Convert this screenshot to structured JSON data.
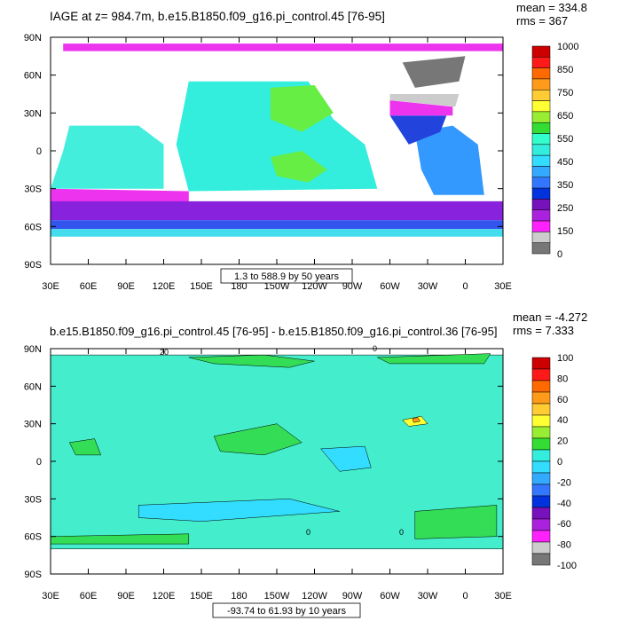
{
  "chart_data": [
    {
      "type": "heatmap",
      "title": "IAGE at z= 984.7m, b.e15.B1850.f09_g16.pi_control.45 [76-95]",
      "stats": {
        "mean": "mean = 334.8",
        "rms": "rms = 367"
      },
      "xlim": [
        30,
        390
      ],
      "ylim": [
        -90,
        90
      ],
      "x_ticks": [
        "30E",
        "60E",
        "90E",
        "120E",
        "150E",
        "180",
        "150W",
        "120W",
        "90W",
        "60W",
        "30W",
        "0",
        "30E"
      ],
      "y_ticks": [
        "90N",
        "60N",
        "30N",
        "0",
        "30S",
        "60S",
        "90S"
      ],
      "range_label": "1.3 to 588.9 by 50 years",
      "colorbar": {
        "labels": [
          "1000",
          "850",
          "750",
          "650",
          "550",
          "450",
          "350",
          "250",
          "150",
          "0"
        ],
        "colors": [
          "#cc0000",
          "#ff1a1a",
          "#ff6a00",
          "#ff9a1a",
          "#ffcc33",
          "#ffff33",
          "#99ee33",
          "#33dd33",
          "#33ffcc",
          "#33eedd",
          "#33ddff",
          "#33aaff",
          "#3377ff",
          "#0033dd",
          "#7711bb",
          "#aa22dd",
          "#ff22ff",
          "#cccccc",
          "#777777"
        ]
      },
      "regions": [
        {
          "name": "arctic-band",
          "color": "#ee33ee",
          "pts": [
            [
              40,
              85
            ],
            [
              390,
              85
            ],
            [
              390,
              79
            ],
            [
              40,
              79
            ]
          ]
        },
        {
          "name": "southern-magenta",
          "color": "#ee33ee",
          "pts": [
            [
              30,
              -30
            ],
            [
              140,
              -32
            ],
            [
              140,
              -45
            ],
            [
              30,
              -50
            ]
          ]
        },
        {
          "name": "southern-purple",
          "color": "#8822dd",
          "pts": [
            [
              30,
              -40
            ],
            [
              390,
              -40
            ],
            [
              390,
              -55
            ],
            [
              30,
              -55
            ]
          ]
        },
        {
          "name": "south-blue",
          "color": "#3355ee",
          "pts": [
            [
              30,
              -55
            ],
            [
              390,
              -55
            ],
            [
              390,
              -62
            ],
            [
              30,
              -62
            ]
          ]
        },
        {
          "name": "south-cyan",
          "color": "#44ddee",
          "pts": [
            [
              30,
              -62
            ],
            [
              390,
              -62
            ],
            [
              390,
              -68
            ],
            [
              30,
              -68
            ]
          ]
        },
        {
          "name": "indian-ocean",
          "color": "#44eedd",
          "pts": [
            [
              45,
              20
            ],
            [
              100,
              20
            ],
            [
              120,
              5
            ],
            [
              120,
              -30
            ],
            [
              30,
              -30
            ],
            [
              40,
              0
            ]
          ]
        },
        {
          "name": "pacific",
          "color": "#33eedd",
          "pts": [
            [
              140,
              55
            ],
            [
              235,
              55
            ],
            [
              255,
              25
            ],
            [
              280,
              5
            ],
            [
              290,
              -30
            ],
            [
              140,
              -32
            ],
            [
              130,
              5
            ]
          ]
        },
        {
          "name": "n-pacific-green",
          "color": "#66ee44",
          "pts": [
            [
              205,
              50
            ],
            [
              240,
              52
            ],
            [
              255,
              30
            ],
            [
              230,
              15
            ],
            [
              205,
              25
            ]
          ]
        },
        {
          "name": "s-pacific-green",
          "color": "#66ee44",
          "pts": [
            [
              205,
              -5
            ],
            [
              230,
              0
            ],
            [
              250,
              -15
            ],
            [
              235,
              -25
            ],
            [
              210,
              -20
            ]
          ]
        },
        {
          "name": "atlantic-blue",
          "color": "#3399ff",
          "pts": [
            [
              320,
              15
            ],
            [
              350,
              20
            ],
            [
              370,
              5
            ],
            [
              375,
              -35
            ],
            [
              335,
              -35
            ],
            [
              325,
              -15
            ]
          ]
        },
        {
          "name": "atlantic-deep",
          "color": "#2244dd",
          "pts": [
            [
              300,
              28
            ],
            [
              345,
              28
            ],
            [
              340,
              15
            ],
            [
              315,
              5
            ]
          ]
        },
        {
          "name": "n-atlantic-magenta",
          "color": "#ee33ee",
          "pts": [
            [
              300,
              40
            ],
            [
              350,
              35
            ],
            [
              350,
              28
            ],
            [
              300,
              28
            ]
          ]
        },
        {
          "name": "n-atlantic-grey",
          "color": "#cccccc",
          "pts": [
            [
              300,
              45
            ],
            [
              355,
              45
            ],
            [
              352,
              35
            ],
            [
              300,
              40
            ]
          ]
        },
        {
          "name": "nordic-dark",
          "color": "#777777",
          "pts": [
            [
              310,
              70
            ],
            [
              360,
              75
            ],
            [
              355,
              55
            ],
            [
              320,
              50
            ]
          ]
        }
      ]
    },
    {
      "type": "heatmap",
      "title": "b.e15.B1850.f09_g16.pi_control.45 [76-95] - b.e15.B1850.f09_g16.pi_control.36 [76-95]",
      "stats": {
        "mean": "mean = -4.272",
        "rms": "rms = 7.333"
      },
      "xlim": [
        30,
        390
      ],
      "ylim": [
        -90,
        90
      ],
      "x_ticks": [
        "30E",
        "60E",
        "90E",
        "120E",
        "150E",
        "180",
        "150W",
        "120W",
        "90W",
        "60W",
        "30W",
        "0",
        "30E"
      ],
      "y_ticks": [
        "90N",
        "60N",
        "30N",
        "0",
        "30S",
        "60S",
        "90S"
      ],
      "range_label": "-93.74 to 61.93 by 10 years",
      "contour_labels": [
        "20",
        "0",
        "0",
        "0"
      ],
      "colorbar": {
        "labels": [
          "100",
          "80",
          "60",
          "40",
          "20",
          "0",
          "-20",
          "-40",
          "-60",
          "-80",
          "-100"
        ],
        "colors": [
          "#cc0000",
          "#ff1a1a",
          "#ff6a00",
          "#ff9a1a",
          "#ffcc33",
          "#ffff33",
          "#99ee33",
          "#33dd33",
          "#33eedd",
          "#33ddff",
          "#33aaff",
          "#3377ff",
          "#0033dd",
          "#7711bb",
          "#aa22dd",
          "#ff22ff",
          "#cccccc",
          "#777777"
        ]
      },
      "regions": [
        {
          "name": "ocean-base",
          "color": "#44eecc",
          "pts": [
            [
              30,
              -70
            ],
            [
              390,
              -70
            ],
            [
              390,
              85
            ],
            [
              30,
              85
            ]
          ]
        },
        {
          "name": "arctic-green",
          "color": "#33dd55",
          "pts": [
            [
              140,
              83
            ],
            [
              200,
              85
            ],
            [
              240,
              80
            ],
            [
              220,
              75
            ],
            [
              160,
              78
            ]
          ]
        },
        {
          "name": "arctic-green-2",
          "color": "#33dd55",
          "pts": [
            [
              290,
              83
            ],
            [
              380,
              86
            ],
            [
              375,
              78
            ],
            [
              300,
              78
            ]
          ]
        },
        {
          "name": "indian-green",
          "color": "#33dd55",
          "pts": [
            [
              45,
              15
            ],
            [
              65,
              18
            ],
            [
              70,
              5
            ],
            [
              50,
              5
            ]
          ]
        },
        {
          "name": "pacific-green",
          "color": "#33dd55",
          "pts": [
            [
              160,
              20
            ],
            [
              210,
              30
            ],
            [
              230,
              15
            ],
            [
              200,
              5
            ],
            [
              165,
              8
            ]
          ]
        },
        {
          "name": "east-pac-cyan",
          "color": "#33ddff",
          "pts": [
            [
              245,
              10
            ],
            [
              280,
              12
            ],
            [
              285,
              -5
            ],
            [
              260,
              -8
            ]
          ]
        },
        {
          "name": "south-cyan",
          "color": "#33ddff",
          "pts": [
            [
              100,
              -35
            ],
            [
              220,
              -30
            ],
            [
              260,
              -40
            ],
            [
              150,
              -48
            ],
            [
              100,
              -45
            ]
          ]
        },
        {
          "name": "s-atlantic-green",
          "color": "#33dd55",
          "pts": [
            [
              320,
              -40
            ],
            [
              385,
              -35
            ],
            [
              385,
              -60
            ],
            [
              320,
              -62
            ]
          ]
        },
        {
          "name": "s-indian-green",
          "color": "#33dd55",
          "pts": [
            [
              30,
              -60
            ],
            [
              140,
              -58
            ],
            [
              140,
              -66
            ],
            [
              30,
              -66
            ]
          ]
        },
        {
          "name": "n-atlantic-yellow",
          "color": "#ffff33",
          "pts": [
            [
              310,
              33
            ],
            [
              325,
              36
            ],
            [
              330,
              30
            ],
            [
              315,
              28
            ]
          ]
        },
        {
          "name": "n-atlantic-orange",
          "color": "#ff9a1a",
          "pts": [
            [
              318,
              34
            ],
            [
              322,
              35
            ],
            [
              324,
              32
            ],
            [
              319,
              31
            ]
          ]
        }
      ]
    }
  ]
}
